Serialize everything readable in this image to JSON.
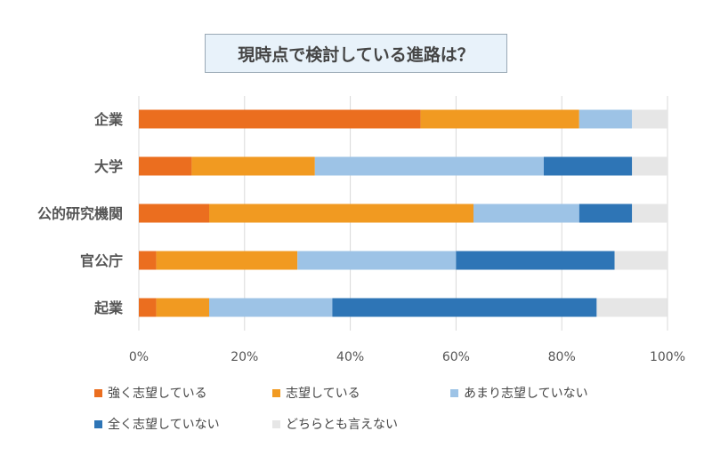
{
  "chart_data": {
    "type": "bar",
    "orientation": "horizontal",
    "stacked": true,
    "title": "現時点で検討している進路は？",
    "categories": [
      "企業",
      "大学",
      "公的研究機関",
      "官公庁",
      "起業"
    ],
    "series": [
      {
        "name": "強く志望している",
        "color": "#eb6e1f",
        "values": [
          53.3,
          10,
          13.3,
          3.3,
          3.3
        ]
      },
      {
        "name": "志望している",
        "color": "#f19a21",
        "values": [
          30,
          23.3,
          50,
          26.7,
          10
        ]
      },
      {
        "name": "あまり志望していない",
        "color": "#9dc3e6",
        "values": [
          10,
          43.3,
          20,
          30,
          23.3
        ]
      },
      {
        "name": "全く志望していない",
        "color": "#2e75b6",
        "values": [
          0,
          16.7,
          10,
          30,
          50
        ]
      },
      {
        "name": "どちらとも言えない",
        "color": "#e6e6e6",
        "values": [
          6.7,
          6.7,
          6.7,
          10,
          13.3
        ]
      }
    ],
    "xticks": [
      "0%",
      "20%",
      "40%",
      "60%",
      "80%",
      "100%"
    ],
    "xlim": [
      0,
      100
    ],
    "grid": true,
    "legend": "bottom"
  }
}
